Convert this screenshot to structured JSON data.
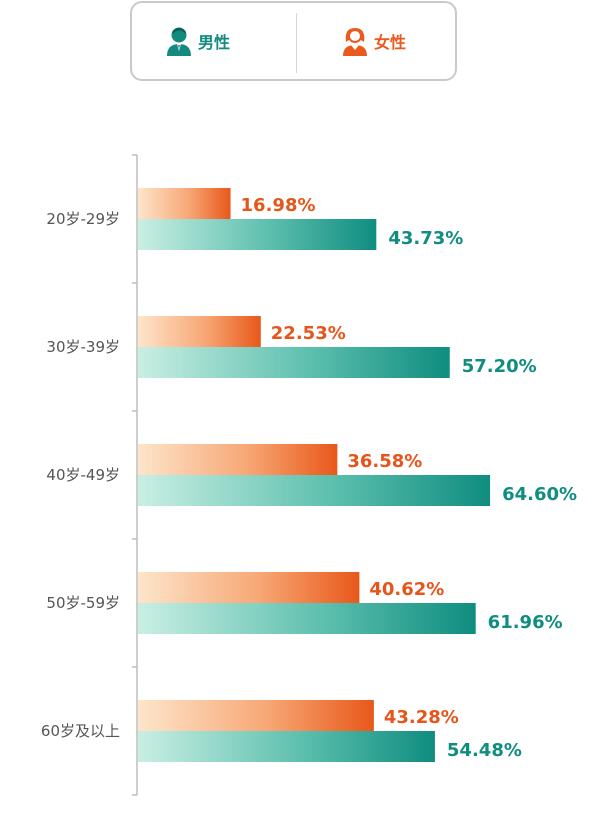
{
  "legend": {
    "male_label": "男性",
    "female_label": "女性",
    "male_icon": "male-user-icon",
    "female_icon": "female-user-icon"
  },
  "colors": {
    "female_dark": "#e8581a",
    "female_light": "#fde3c9",
    "male_dark": "#0f8d80",
    "male_light": "#c8efe2"
  },
  "chart_data": {
    "type": "bar",
    "orientation": "horizontal",
    "categories": [
      "20岁-29岁",
      "30岁-39岁",
      "40岁-49岁",
      "50岁-59岁",
      "60岁及以上"
    ],
    "series": [
      {
        "name": "女性",
        "values": [
          16.98,
          22.53,
          36.58,
          40.62,
          43.28
        ],
        "labels": [
          "16.98%",
          "22.53%",
          "36.58%",
          "40.62%",
          "43.28%"
        ]
      },
      {
        "name": "男性",
        "values": [
          43.73,
          57.2,
          64.6,
          61.96,
          54.48
        ],
        "labels": [
          "43.73%",
          "57.20%",
          "64.60%",
          "61.96%",
          "54.48%"
        ]
      }
    ],
    "xlim": [
      0,
      100
    ],
    "unit": "%",
    "grid": false,
    "legend_position": "top"
  }
}
